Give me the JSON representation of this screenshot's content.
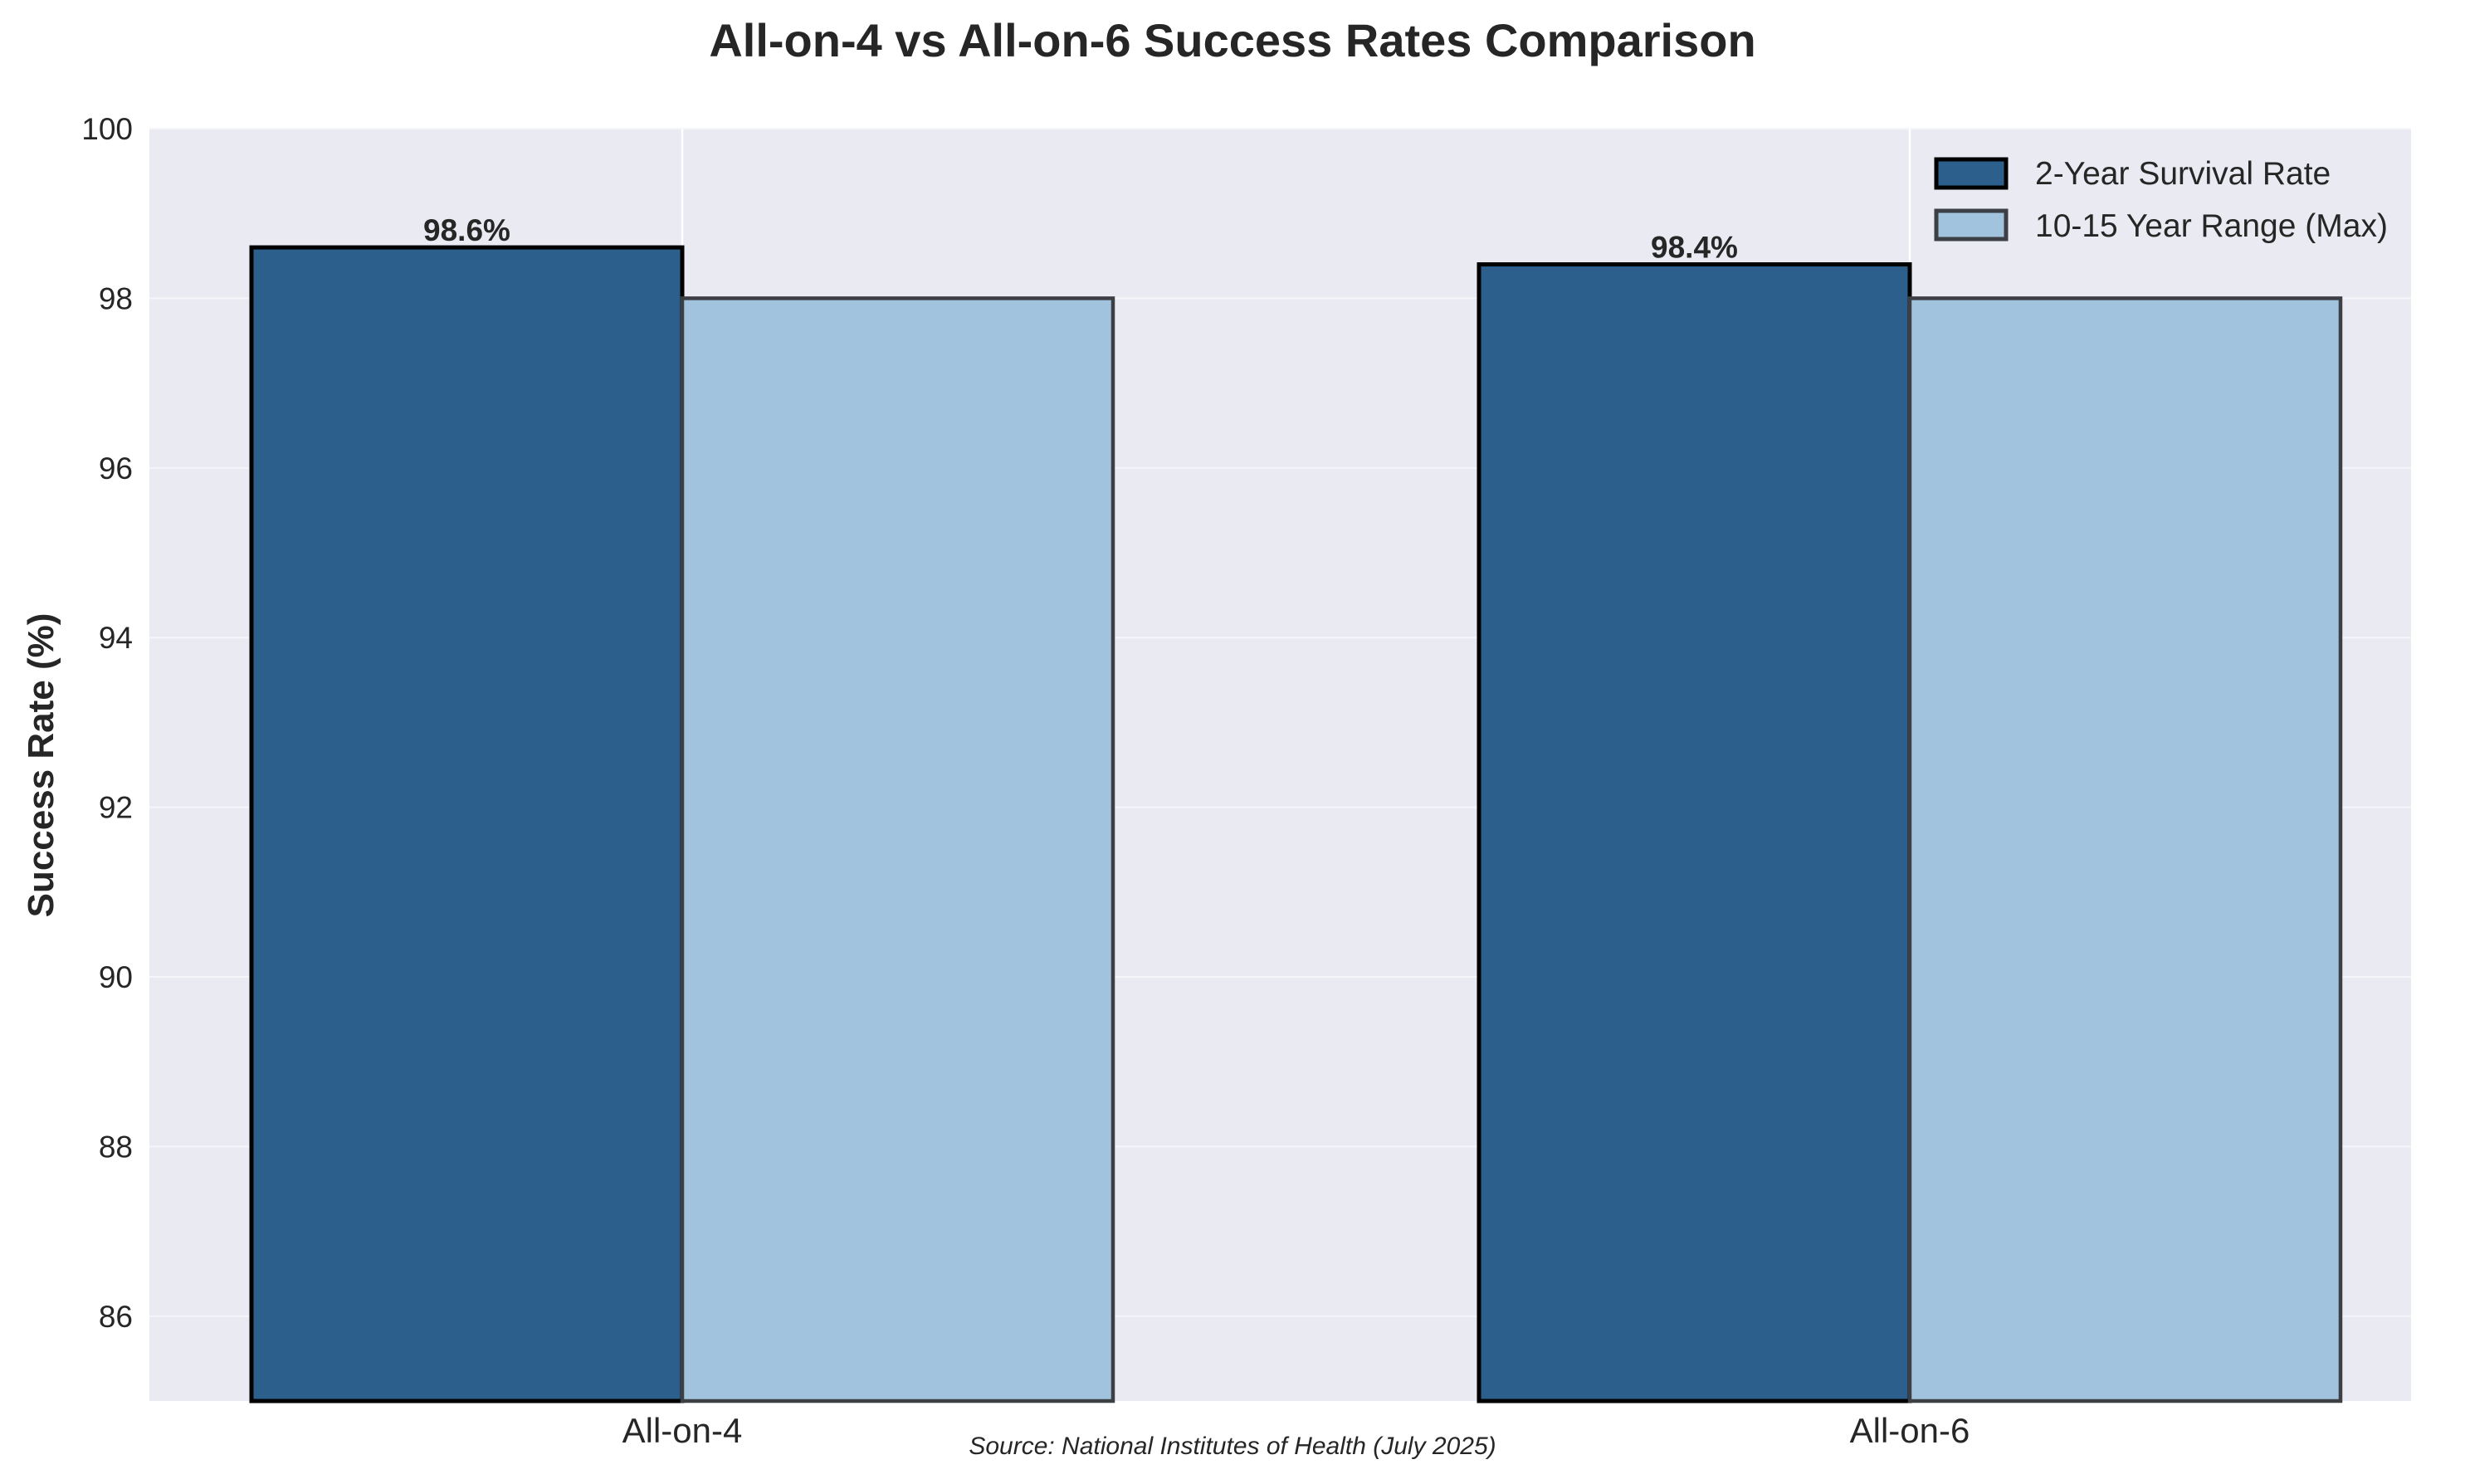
{
  "chart_data": {
    "type": "bar",
    "title": "All-on-4 vs All-on-6 Success Rates Comparison",
    "xlabel": "",
    "ylabel": "Success Rate (%)",
    "ylim": [
      85,
      100
    ],
    "yticks": [
      86,
      88,
      90,
      92,
      94,
      96,
      98,
      100
    ],
    "categories": [
      "All-on-4",
      "All-on-6"
    ],
    "series": [
      {
        "name": "2-Year Survival Rate",
        "values": [
          98.6,
          98.4
        ],
        "color": "#2c5f8c",
        "edge_color": "#000000",
        "data_labels": [
          "98.6%",
          "98.4%"
        ]
      },
      {
        "name": "10-15 Year Range (Max)",
        "values": [
          98,
          98
        ],
        "color": "#a1c3de",
        "edge_color": "#3c3f44"
      }
    ],
    "grid": true,
    "legend_position": "top-right",
    "plot_background": "#e9eaf2",
    "source_note": "Source: National Institutes of Health (July 2025)"
  }
}
